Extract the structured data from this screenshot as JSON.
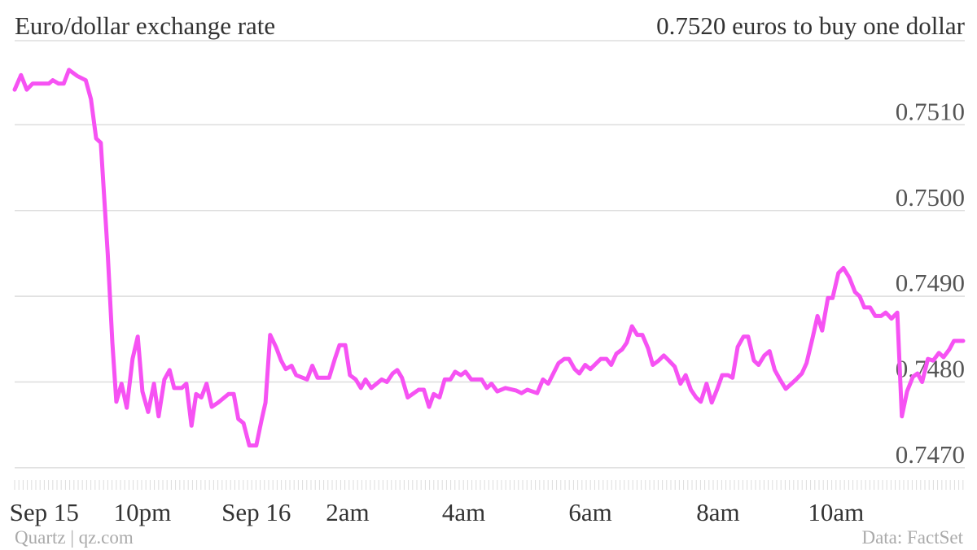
{
  "chart_data": {
    "type": "line",
    "title": "Euro/dollar exchange rate",
    "subtitle": "0.7520 euros to buy one dollar",
    "source": "Data: FactSet",
    "credit": "Quartz | qz.com",
    "color": "#f652f3",
    "x": [
      0,
      0.11,
      0.21,
      0.31,
      0.59,
      0.66,
      0.76,
      0.85,
      0.94,
      1.08,
      1.23,
      1.32,
      1.41,
      1.49,
      1.61,
      1.69,
      1.76,
      1.85,
      1.94,
      2.04,
      2.13,
      2.21,
      2.31,
      2.41,
      2.49,
      2.59,
      2.68,
      2.76,
      2.89,
      2.97,
      3.06,
      3.14,
      3.23,
      3.32,
      3.41,
      3.52,
      3.7,
      3.79,
      3.87,
      3.96,
      4.06,
      4.18,
      4.27,
      4.34,
      4.42,
      4.52,
      4.61,
      4.69,
      4.79,
      4.87,
      5.06,
      5.15,
      5.24,
      5.44,
      5.54,
      5.62,
      5.72,
      5.8,
      5.9,
      5.99,
      6.07,
      6.17,
      6.35,
      6.44,
      6.54,
      6.62,
      6.7,
      6.8,
      6.99,
      7.08,
      7.17,
      7.25,
      7.35,
      7.44,
      7.54,
      7.62,
      7.72,
      7.8,
      7.9,
      8.08,
      8.17,
      8.25,
      8.35,
      8.49,
      8.68,
      8.77,
      8.87,
      9.04,
      9.14,
      9.23,
      9.41,
      9.51,
      9.59,
      9.69,
      9.77,
      9.87,
      9.96,
      10.14,
      10.24,
      10.32,
      10.41,
      10.51,
      10.59,
      10.68,
      10.77,
      10.86,
      10.96,
      11.04,
      11.14,
      11.23,
      11.32,
      11.42,
      11.52,
      11.61,
      11.7,
      11.79,
      11.87,
      11.97,
      12.06,
      12.15,
      12.24,
      12.34,
      12.42,
      12.51,
      12.61,
      12.69,
      12.79,
      12.87,
      12.97,
      13.06,
      13.15,
      13.24,
      13.34,
      13.52,
      13.62,
      13.7,
      13.8,
      13.89,
      13.97,
      14.07,
      14.15,
      14.25,
      14.34,
      14.44,
      14.54,
      14.62,
      14.7,
      14.8,
      14.89,
      14.99,
      15.07,
      15.17,
      15.27,
      15.35,
      15.44,
      15.54,
      15.62,
      15.7,
      15.8,
      15.89,
      15.99,
      16.07,
      16.17,
      16.25,
      16.41
    ],
    "values": [
      0.75141,
      0.75158,
      0.75141,
      0.75148,
      0.75148,
      0.75152,
      0.75148,
      0.75148,
      0.75164,
      0.75157,
      0.75152,
      0.7513,
      0.75084,
      0.75079,
      0.7495,
      0.74846,
      0.74777,
      0.74798,
      0.7477,
      0.74827,
      0.74853,
      0.74789,
      0.74765,
      0.74798,
      0.7476,
      0.74803,
      0.74814,
      0.74793,
      0.74793,
      0.74798,
      0.74749,
      0.74786,
      0.74782,
      0.74798,
      0.74771,
      0.74776,
      0.74786,
      0.74786,
      0.74757,
      0.74752,
      0.74726,
      0.74726,
      0.74755,
      0.74776,
      0.74855,
      0.74841,
      0.74825,
      0.74815,
      0.74819,
      0.74808,
      0.74803,
      0.74819,
      0.74805,
      0.74805,
      0.74827,
      0.74843,
      0.74843,
      0.74808,
      0.74803,
      0.74793,
      0.74803,
      0.74793,
      0.74803,
      0.748,
      0.7481,
      0.74814,
      0.74805,
      0.74782,
      0.74791,
      0.74791,
      0.74771,
      0.74786,
      0.74782,
      0.74803,
      0.74803,
      0.74812,
      0.74808,
      0.74812,
      0.74803,
      0.74803,
      0.74793,
      0.74798,
      0.74789,
      0.74793,
      0.7479,
      0.74787,
      0.74791,
      0.74787,
      0.74803,
      0.74798,
      0.74822,
      0.74827,
      0.74827,
      0.74815,
      0.7481,
      0.7482,
      0.74815,
      0.74827,
      0.74827,
      0.7482,
      0.74833,
      0.74838,
      0.74846,
      0.74865,
      0.74855,
      0.74855,
      0.74839,
      0.7482,
      0.74825,
      0.74831,
      0.74825,
      0.74818,
      0.74798,
      0.74808,
      0.74791,
      0.74782,
      0.74777,
      0.74798,
      0.74776,
      0.74791,
      0.74808,
      0.74808,
      0.74805,
      0.74841,
      0.74853,
      0.74853,
      0.74825,
      0.7482,
      0.74831,
      0.74836,
      0.74814,
      0.74803,
      0.74792,
      0.74803,
      0.7481,
      0.74822,
      0.7485,
      0.74877,
      0.7486,
      0.74898,
      0.74898,
      0.74927,
      0.74933,
      0.74922,
      0.74905,
      0.749,
      0.74887,
      0.74887,
      0.74877,
      0.74877,
      0.74881,
      0.74874,
      0.74881,
      0.7476,
      0.74789,
      0.74806,
      0.7481,
      0.748,
      0.74827,
      0.74825,
      0.74834,
      0.74829,
      0.74838,
      0.74848,
      0.74848
    ],
    "xlim": [
      0,
      16.41
    ],
    "xticks": [
      {
        "value": 0.51,
        "label": "Sep 15"
      },
      {
        "value": 2.21,
        "label": "10pm"
      },
      {
        "value": 4.18,
        "label": "Sep 16"
      },
      {
        "value": 5.76,
        "label": "2am"
      },
      {
        "value": 7.77,
        "label": "4am"
      },
      {
        "value": 9.96,
        "label": "6am"
      },
      {
        "value": 12.17,
        "label": "8am"
      },
      {
        "value": 14.21,
        "label": "10am"
      }
    ],
    "ylim": [
      0.7468,
      0.752
    ],
    "yticks": [
      {
        "value": 0.747,
        "label": "0.7470"
      },
      {
        "value": 0.748,
        "label": "0.7480"
      },
      {
        "value": 0.749,
        "label": "0.7490"
      },
      {
        "value": 0.75,
        "label": "0.7500"
      },
      {
        "value": 0.751,
        "label": "0.7510"
      }
    ],
    "grid": true
  }
}
